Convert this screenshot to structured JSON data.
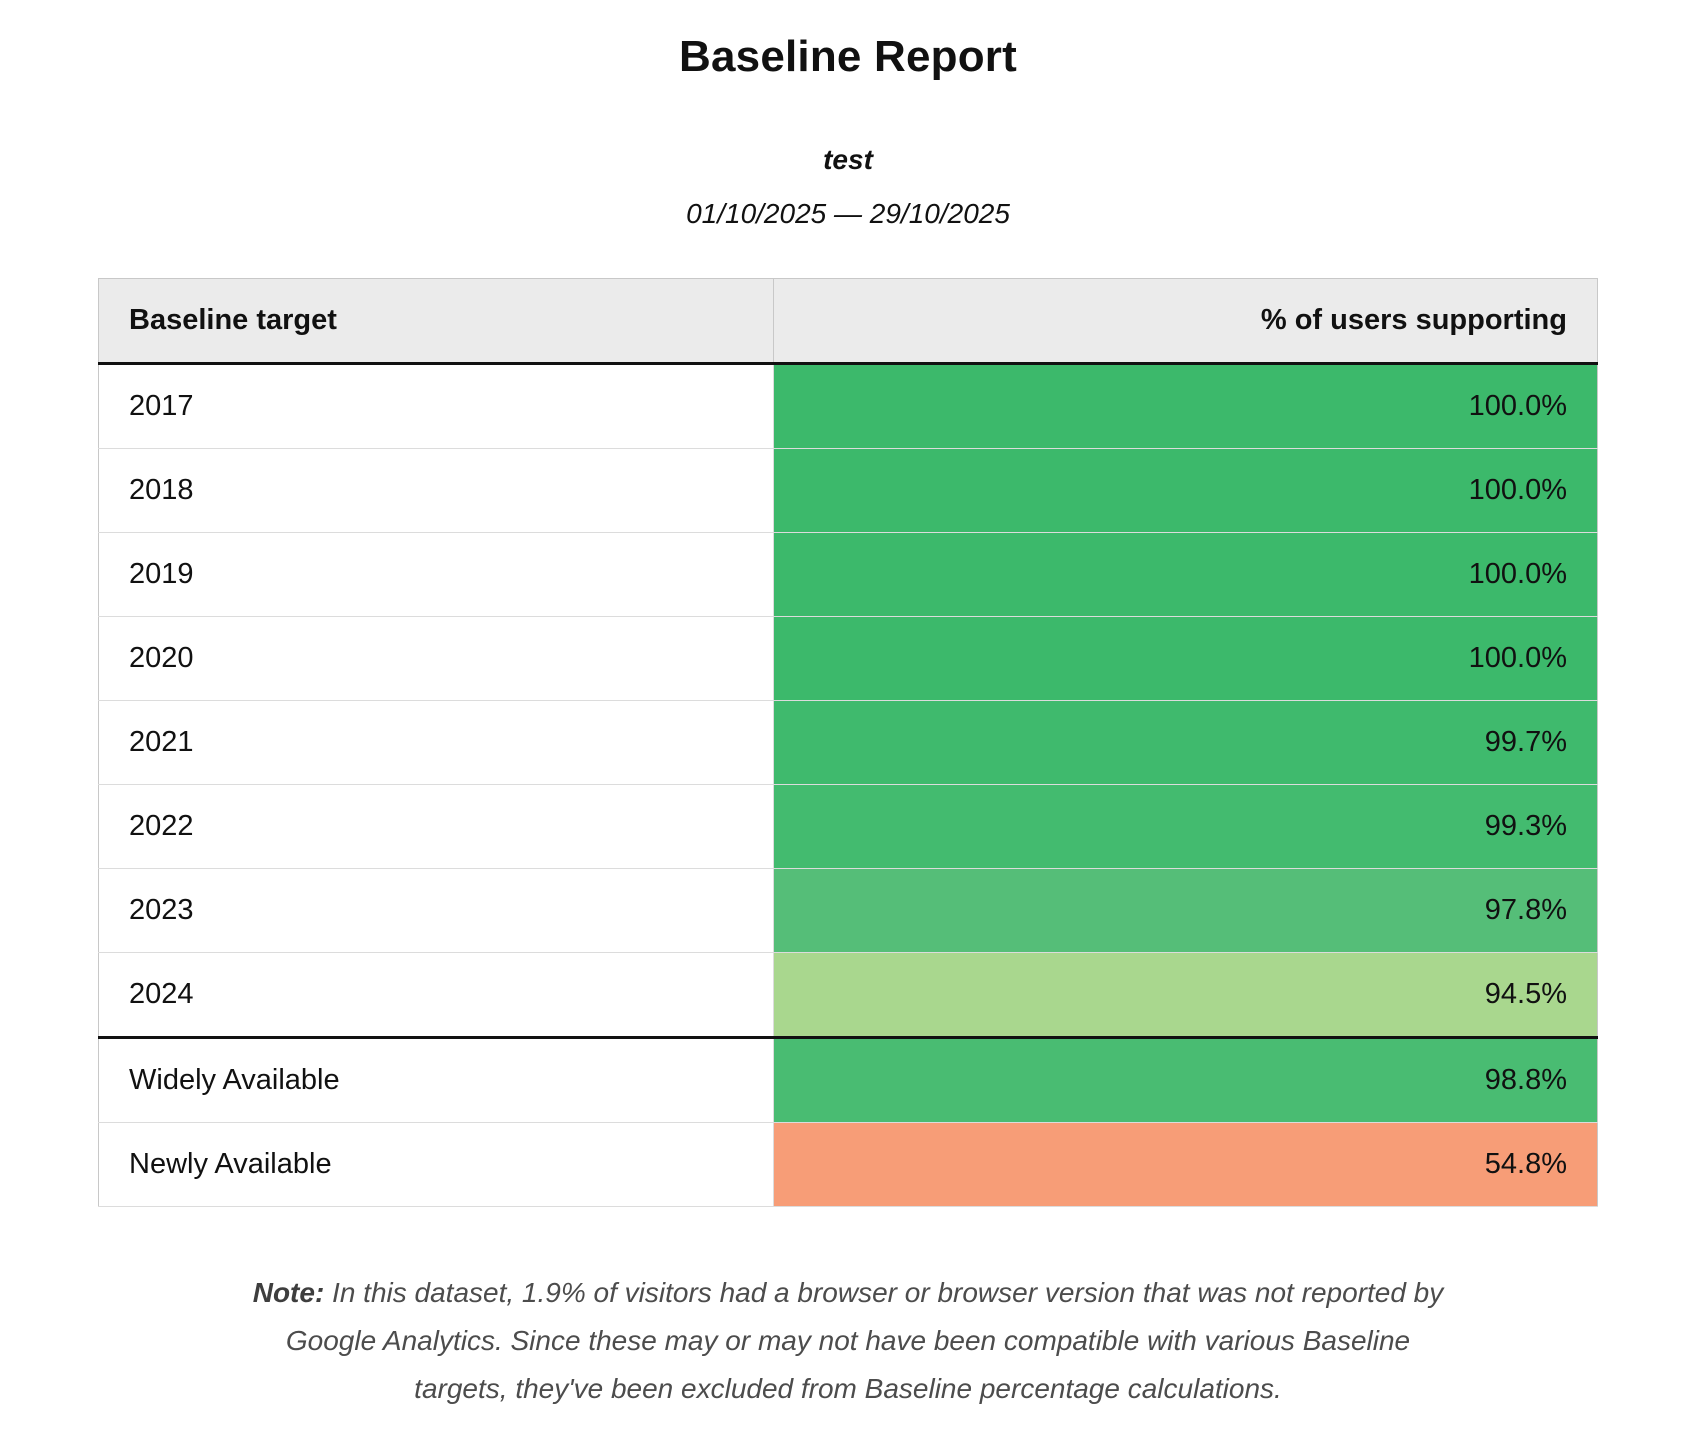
{
  "report": {
    "title": "Baseline Report",
    "subtitle": "test",
    "date_range": "01/10/2025 — 29/10/2025"
  },
  "table": {
    "headers": {
      "target": "Baseline target",
      "value": "% of users supporting"
    },
    "rows": [
      {
        "target": "2017",
        "value": "100.0%",
        "color": "#3cb96b",
        "section_start": false
      },
      {
        "target": "2018",
        "value": "100.0%",
        "color": "#3cb96b",
        "section_start": false
      },
      {
        "target": "2019",
        "value": "100.0%",
        "color": "#3cb96b",
        "section_start": false
      },
      {
        "target": "2020",
        "value": "100.0%",
        "color": "#3cb96b",
        "section_start": false
      },
      {
        "target": "2021",
        "value": "99.7%",
        "color": "#3fba6d",
        "section_start": false
      },
      {
        "target": "2022",
        "value": "99.3%",
        "color": "#43bb6f",
        "section_start": false
      },
      {
        "target": "2023",
        "value": "97.8%",
        "color": "#55be78",
        "section_start": false
      },
      {
        "target": "2024",
        "value": "94.5%",
        "color": "#a9d78e",
        "section_start": false
      },
      {
        "target": "Widely Available",
        "value": "98.8%",
        "color": "#49bc72",
        "section_start": true
      },
      {
        "target": "Newly Available",
        "value": "54.8%",
        "color": "#f79d77",
        "section_start": false
      }
    ]
  },
  "note": {
    "label": "Note:",
    "text": "In this dataset, 1.9% of visitors had a browser or browser version that was not reported by Google Analytics. Since these may or may not have been compatible with various Baseline targets, they've been excluded from Baseline percentage calculations."
  },
  "chart_data": {
    "type": "table",
    "title": "Baseline Report",
    "subtitle": "test",
    "date_range": "01/10/2025 — 29/10/2025",
    "columns": [
      "Baseline target",
      "% of users supporting"
    ],
    "categories": [
      "2017",
      "2018",
      "2019",
      "2020",
      "2021",
      "2022",
      "2023",
      "2024",
      "Widely Available",
      "Newly Available"
    ],
    "values": [
      100.0,
      100.0,
      100.0,
      100.0,
      99.7,
      99.3,
      97.8,
      94.5,
      98.8,
      54.8
    ],
    "value_unit": "%",
    "cell_colors": [
      "#3cb96b",
      "#3cb96b",
      "#3cb96b",
      "#3cb96b",
      "#3fba6d",
      "#43bb6f",
      "#55be78",
      "#a9d78e",
      "#49bc72",
      "#f79d77"
    ],
    "layout": "two-column table, left column white, right column color-coded by percentage (green high, salmon low), thick divider after 2024 row"
  }
}
